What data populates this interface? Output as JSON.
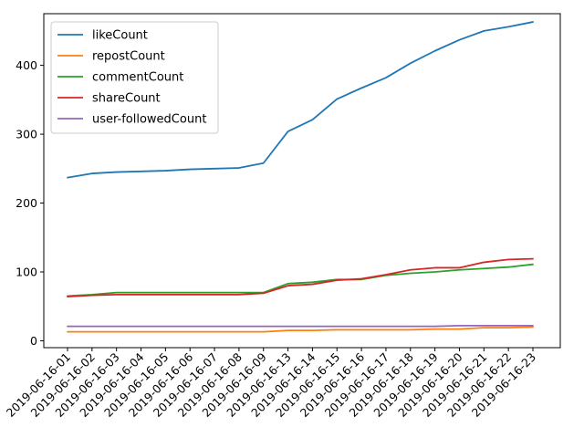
{
  "chart_data": {
    "type": "line",
    "title": "",
    "xlabel": "",
    "ylabel": "",
    "categories": [
      "2019-06-16-01",
      "2019-06-16-02",
      "2019-06-16-03",
      "2019-06-16-04",
      "2019-06-16-05",
      "2019-06-16-06",
      "2019-06-16-07",
      "2019-06-16-08",
      "2019-06-16-09",
      "2019-06-16-13",
      "2019-06-16-14",
      "2019-06-16-15",
      "2019-06-16-16",
      "2019-06-16-17",
      "2019-06-16-18",
      "2019-06-16-19",
      "2019-06-16-20",
      "2019-06-16-21",
      "2019-06-16-22",
      "2019-06-16-23"
    ],
    "ylim": [
      -10,
      475
    ],
    "yticks": [
      0,
      100,
      200,
      300,
      400
    ],
    "grid": false,
    "legend_position": "upper-left",
    "series": [
      {
        "name": "likeCount",
        "color": "#1f77b4",
        "values": [
          237,
          243,
          245,
          246,
          247,
          249,
          250,
          251,
          258,
          304,
          321,
          351,
          367,
          382,
          403,
          421,
          437,
          450,
          456,
          463
        ]
      },
      {
        "name": "repostCount",
        "color": "#ff7f0e",
        "values": [
          13,
          13,
          13,
          13,
          13,
          13,
          13,
          13,
          13,
          15,
          15,
          16,
          16,
          16,
          16,
          17,
          17,
          19,
          19,
          20
        ]
      },
      {
        "name": "commentCount",
        "color": "#2ca02c",
        "values": [
          65,
          67,
          70,
          70,
          70,
          70,
          70,
          70,
          70,
          83,
          85,
          89,
          89,
          95,
          98,
          100,
          103,
          105,
          107,
          111
        ]
      },
      {
        "name": "shareCount",
        "color": "#d62728",
        "values": [
          64,
          66,
          67,
          67,
          67,
          67,
          67,
          67,
          69,
          80,
          82,
          88,
          90,
          96,
          103,
          106,
          106,
          114,
          118,
          119
        ]
      },
      {
        "name": "user-followedCount",
        "color": "#9467bd",
        "values": [
          21,
          21,
          21,
          21,
          21,
          21,
          21,
          21,
          21,
          21,
          21,
          21,
          21,
          21,
          21,
          21,
          22,
          22,
          22,
          22
        ]
      }
    ]
  }
}
